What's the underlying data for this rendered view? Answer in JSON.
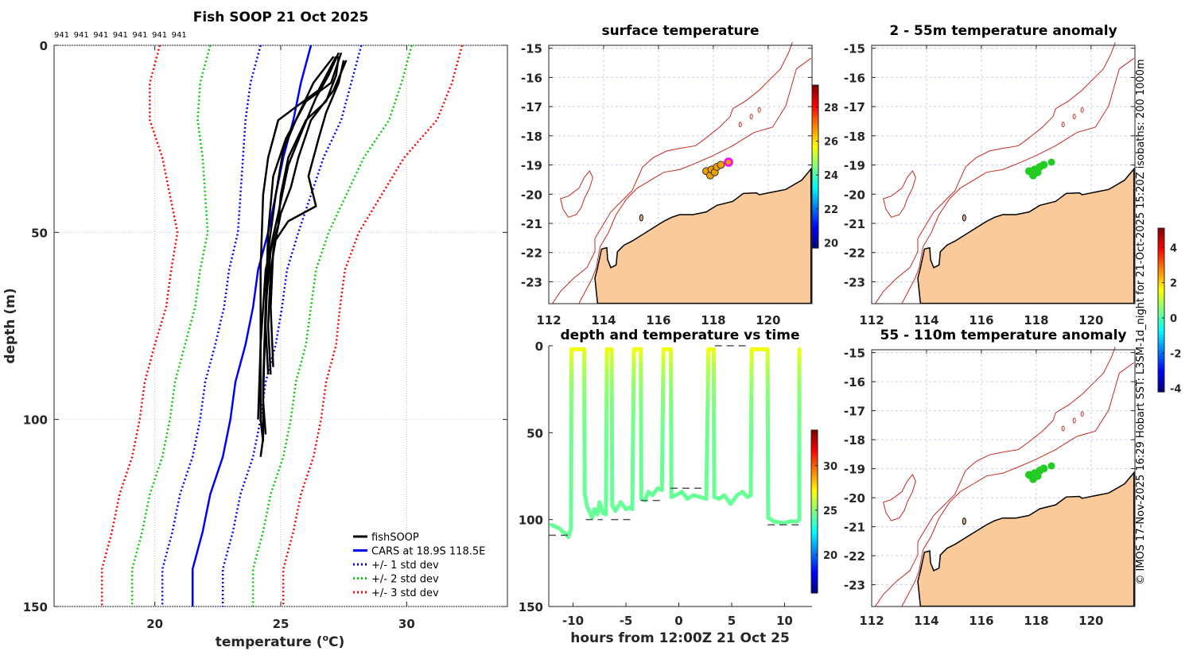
{
  "footer_text": "© IMOS 17-Nov-2025 16:29 Hobart SST: L3SM-1d_night for 21-Oct-2025 15:20Z isobaths: 200  1000m",
  "colors": {
    "fishsoop": "#000000",
    "cars": "#0000ff",
    "std1": "#0000ff",
    "std2": "#00cc00",
    "std3": "#ff0000",
    "land": "#fbca9a",
    "isobath": "#c8281e",
    "highlight": "#ff00ff"
  },
  "chart_data": [
    {
      "type": "line",
      "title": "Fish SOOP 21 Oct 2025",
      "header_labels": [
        "941",
        "941",
        "941",
        "941",
        "941",
        "941",
        "941"
      ],
      "xlabel_parts": [
        "temperature (",
        "o",
        "C)"
      ],
      "ylabel": "depth (m)",
      "xlim": [
        16,
        34
      ],
      "ylim": [
        150,
        0
      ],
      "xticks": [
        "20",
        "25",
        "30"
      ],
      "yticks": [
        "0",
        "50",
        "100",
        "150"
      ],
      "grid": true,
      "legend": {
        "placement": "bottom-right",
        "entries": [
          "fishSOOP",
          "CARS at 18.9S 118.5E",
          "+/- 1 std dev",
          "+/- 2 std dev",
          "+/- 3 std dev"
        ]
      },
      "fishsoop_profiles": [
        [
          [
            3,
            27.3
          ],
          [
            8,
            27.2
          ],
          [
            15,
            26.8
          ],
          [
            20,
            26.0
          ],
          [
            30,
            25.3
          ],
          [
            40,
            25.0
          ],
          [
            48,
            24.9
          ],
          [
            55,
            24.6
          ],
          [
            70,
            24.4
          ],
          [
            90,
            24.3
          ],
          [
            105,
            24.3
          ],
          [
            110,
            24.2
          ]
        ],
        [
          [
            2,
            27.4
          ],
          [
            10,
            27.0
          ],
          [
            15,
            26.0
          ],
          [
            25,
            25.2
          ],
          [
            35,
            24.7
          ],
          [
            50,
            24.5
          ],
          [
            70,
            24.4
          ],
          [
            95,
            24.3
          ],
          [
            104,
            24.4
          ]
        ],
        [
          [
            3,
            27.2
          ],
          [
            12,
            26.5
          ],
          [
            20,
            24.9
          ],
          [
            30,
            24.5
          ],
          [
            40,
            24.3
          ],
          [
            60,
            24.2
          ],
          [
            80,
            24.2
          ],
          [
            100,
            24.1
          ]
        ],
        [
          [
            4,
            27.5
          ],
          [
            10,
            27.3
          ],
          [
            18,
            26.8
          ],
          [
            25,
            26.5
          ],
          [
            35,
            26.1
          ],
          [
            43,
            26.4
          ],
          [
            47,
            25.3
          ],
          [
            52,
            24.8
          ],
          [
            60,
            24.6
          ],
          [
            75,
            24.5
          ],
          [
            88,
            24.6
          ]
        ],
        [
          [
            3,
            27.1
          ],
          [
            10,
            26.3
          ],
          [
            20,
            25.6
          ],
          [
            28,
            25.1
          ],
          [
            40,
            24.8
          ],
          [
            55,
            24.5
          ],
          [
            75,
            24.4
          ],
          [
            88,
            24.5
          ]
        ],
        [
          [
            4,
            27.6
          ],
          [
            12,
            27.1
          ],
          [
            20,
            26.2
          ],
          [
            30,
            25.7
          ],
          [
            38,
            25.4
          ],
          [
            45,
            25.0
          ],
          [
            55,
            24.7
          ],
          [
            70,
            24.6
          ],
          [
            86,
            24.7
          ]
        ],
        [
          [
            2,
            27.3
          ],
          [
            8,
            26.9
          ],
          [
            14,
            26.4
          ],
          [
            22,
            25.9
          ],
          [
            32,
            25.3
          ],
          [
            45,
            24.9
          ],
          [
            60,
            24.4
          ],
          [
            80,
            24.2
          ],
          [
            100,
            24.2
          ],
          [
            106,
            24.3
          ]
        ]
      ],
      "cars_depth": [
        0,
        10,
        20,
        30,
        40,
        50,
        60,
        70,
        80,
        90,
        100,
        110,
        120,
        130,
        140,
        150
      ],
      "cars_mean": [
        26.2,
        25.8,
        25.5,
        25.1,
        24.8,
        24.5,
        24.1,
        23.9,
        23.6,
        23.2,
        23.0,
        22.7,
        22.2,
        21.9,
        21.5,
        21.5
      ],
      "cars_std": [
        2.0,
        2.0,
        1.9,
        1.6,
        1.4,
        1.2,
        1.15,
        1.15,
        1.2,
        1.2,
        1.2,
        1.2,
        1.2,
        1.2,
        1.2,
        1.2
      ]
    },
    {
      "type": "scatter",
      "title": "surface temperature",
      "xlim": [
        112,
        121.6
      ],
      "ylim": [
        -23.75,
        -14.9
      ],
      "xticks": [
        "112",
        "114",
        "116",
        "118",
        "120"
      ],
      "yticks": [
        "-15",
        "-16",
        "-17",
        "-18",
        "-19",
        "-20",
        "-21",
        "-22",
        "-23"
      ],
      "points_color": "#f0a000",
      "colorbar": {
        "ticks": [
          "28",
          "26",
          "24",
          "22",
          "20"
        ],
        "range": [
          19.7,
          29.3
        ]
      }
    },
    {
      "type": "scatter",
      "title": "2 - 55m temperature anomaly",
      "xlim": [
        112,
        121.6
      ],
      "ylim": [
        -23.75,
        -14.9
      ],
      "xticks": [
        "112",
        "114",
        "116",
        "118",
        "120"
      ],
      "yticks": [
        "-15",
        "-16",
        "-17",
        "-18",
        "-19",
        "-20",
        "-21",
        "-22",
        "-23"
      ],
      "points_color": "#22cc22",
      "colorbar": {
        "ticks": [
          "4",
          "2",
          "0",
          "-2",
          "-4"
        ],
        "range": [
          -4.2,
          5.1
        ]
      }
    },
    {
      "type": "scatter",
      "title": "55 - 110m temperature anomaly",
      "xlim": [
        112,
        121.6
      ],
      "ylim": [
        -23.75,
        -14.9
      ],
      "xticks": [
        "112",
        "114",
        "116",
        "118",
        "120"
      ],
      "yticks": [
        "-15",
        "-16",
        "-17",
        "-18",
        "-19",
        "-20",
        "-21",
        "-22",
        "-23"
      ],
      "points_color": "#22cc22"
    },
    {
      "type": "line",
      "title": "depth and temperature vs time",
      "xlabel": "hours from 12:00Z 21 Oct 25",
      "xlim": [
        -12.3,
        12.6
      ],
      "ylim": [
        150,
        0
      ],
      "xticks": [
        "-10",
        "-5",
        "0",
        "5",
        "10"
      ],
      "yticks": [
        "0",
        "50",
        "100",
        "150"
      ],
      "colorbar": {
        "ticks": [
          "30",
          "25",
          "20"
        ],
        "range": [
          15.7,
          34.0
        ]
      },
      "track": [
        [
          -12.05,
          103
        ],
        [
          -11.7,
          104
        ],
        [
          -11.3,
          105
        ],
        [
          -11.0,
          107
        ],
        [
          -10.7,
          108
        ],
        [
          -10.45,
          110
        ],
        [
          -10.2,
          105
        ],
        [
          -10.15,
          2
        ],
        [
          -8.95,
          2
        ],
        [
          -8.9,
          85
        ],
        [
          -8.7,
          92
        ],
        [
          -8.4,
          96
        ],
        [
          -8.2,
          99
        ],
        [
          -8.0,
          94
        ],
        [
          -7.7,
          97
        ],
        [
          -7.5,
          90
        ],
        [
          -7.2,
          96
        ],
        [
          -6.9,
          97
        ],
        [
          -6.8,
          2
        ],
        [
          -6.35,
          2
        ],
        [
          -6.3,
          92
        ],
        [
          -6.0,
          95
        ],
        [
          -5.5,
          90
        ],
        [
          -5.0,
          94
        ],
        [
          -4.6,
          93
        ],
        [
          -4.4,
          94
        ],
        [
          -4.25,
          2
        ],
        [
          -3.6,
          2
        ],
        [
          -3.55,
          88
        ],
        [
          -3.2,
          89
        ],
        [
          -2.9,
          84
        ],
        [
          -2.5,
          86
        ],
        [
          -2.0,
          82
        ],
        [
          -1.6,
          83
        ],
        [
          -1.45,
          2
        ],
        [
          -0.75,
          2
        ],
        [
          -0.7,
          87
        ],
        [
          -0.3,
          86
        ],
        [
          0.3,
          84
        ],
        [
          0.8,
          88
        ],
        [
          1.4,
          86
        ],
        [
          2.0,
          87
        ],
        [
          2.6,
          88
        ],
        [
          2.8,
          2
        ],
        [
          3.3,
          2
        ],
        [
          3.35,
          87
        ],
        [
          3.8,
          88
        ],
        [
          4.3,
          86
        ],
        [
          4.9,
          91
        ],
        [
          5.5,
          86
        ],
        [
          6.0,
          84
        ],
        [
          6.5,
          87
        ],
        [
          6.8,
          86
        ],
        [
          6.9,
          2
        ],
        [
          8.4,
          2
        ],
        [
          8.45,
          99
        ],
        [
          9.0,
          101
        ],
        [
          9.9,
          102
        ],
        [
          10.5,
          101
        ],
        [
          11.2,
          101
        ],
        [
          11.4,
          100
        ],
        [
          11.4,
          2
        ]
      ],
      "bottom_depth_marks": [
        [
          -12.3,
          -10.4,
          109
        ],
        [
          -8.8,
          -7.2,
          100
        ],
        [
          -6.4,
          -4.4,
          100
        ],
        [
          -3.6,
          -1.7,
          89
        ],
        [
          -0.8,
          2.3,
          82
        ],
        [
          3.4,
          6.5,
          0
        ],
        [
          8.4,
          11.4,
          103
        ]
      ]
    }
  ]
}
